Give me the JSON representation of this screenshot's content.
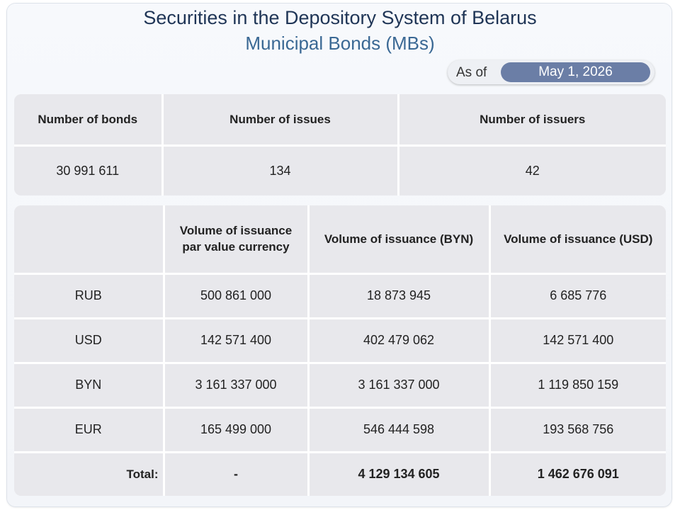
{
  "header": {
    "title": "Securities in the Depository System of Belarus",
    "subtitle": "Municipal Bonds (MBs)",
    "as_of_label": "As of",
    "date": "May 1, 2026"
  },
  "summary_table": {
    "headers": [
      "Number of bonds",
      "Number of issues",
      "Number of issuers"
    ],
    "rows": [
      [
        "30 991 611",
        "134",
        "42"
      ]
    ]
  },
  "volume_table": {
    "headers": [
      "Volume of issuance par value currency",
      "Volume of issuance (BYN)",
      "Volume of issuance (USD)"
    ],
    "rows": [
      [
        "RUB",
        "500 861 000",
        "18 873 945",
        "6 685 776"
      ],
      [
        "USD",
        "142 571 400",
        "402 479 062",
        "142 571 400"
      ],
      [
        "BYN",
        "3 161 337 000",
        "3 161 337 000",
        "1 119 850 159"
      ],
      [
        "EUR",
        "165 499 000",
        "546 444 598",
        "193 568 756"
      ]
    ],
    "total": [
      "Total:",
      "-",
      "4 129 134 605",
      "1 462 676 091"
    ]
  }
}
